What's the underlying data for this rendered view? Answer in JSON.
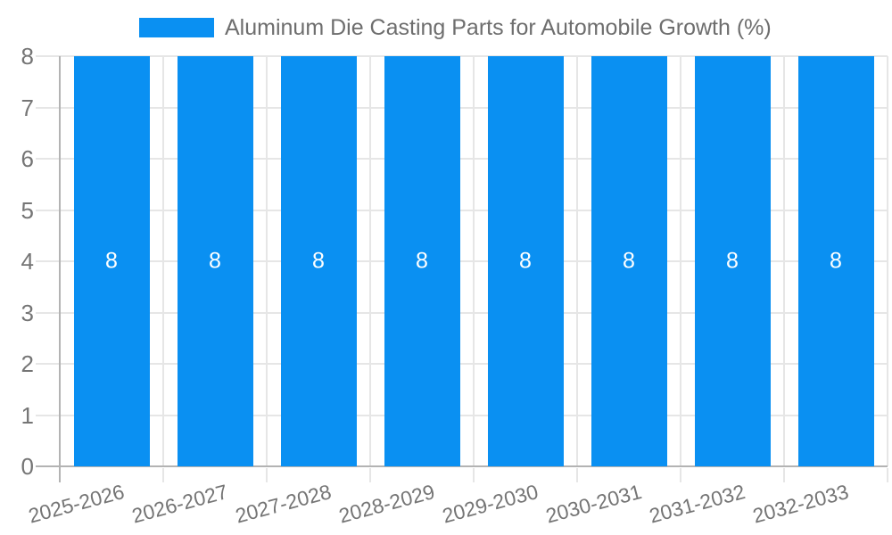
{
  "legend": {
    "label": "Aluminum Die Casting Parts for Automobile Growth (%)"
  },
  "chart_data": {
    "type": "bar",
    "title": "Aluminum Die Casting Parts for Automobile Growth (%)",
    "categories": [
      "2025-2026",
      "2026-2027",
      "2027-2028",
      "2028-2029",
      "2029-2030",
      "2030-2031",
      "2031-2032",
      "2032-2033"
    ],
    "values": [
      8,
      8,
      8,
      8,
      8,
      8,
      8,
      8
    ],
    "bar_labels": [
      "8",
      "8",
      "8",
      "8",
      "8",
      "8",
      "8",
      "8"
    ],
    "ylim": [
      0,
      8
    ],
    "yticks": [
      0,
      1,
      2,
      3,
      4,
      5,
      6,
      7,
      8
    ],
    "xlabel": "",
    "ylabel": "",
    "grid": true,
    "legend_position": "top",
    "colors": {
      "bar": "#0A90F2",
      "grid": "#E6E6E6",
      "axis": "#B3B3B3",
      "tick_label": "#757575",
      "title_text": "#6E6E6E",
      "bar_label": "#FFFFFF",
      "background": "#FFFFFF"
    }
  }
}
